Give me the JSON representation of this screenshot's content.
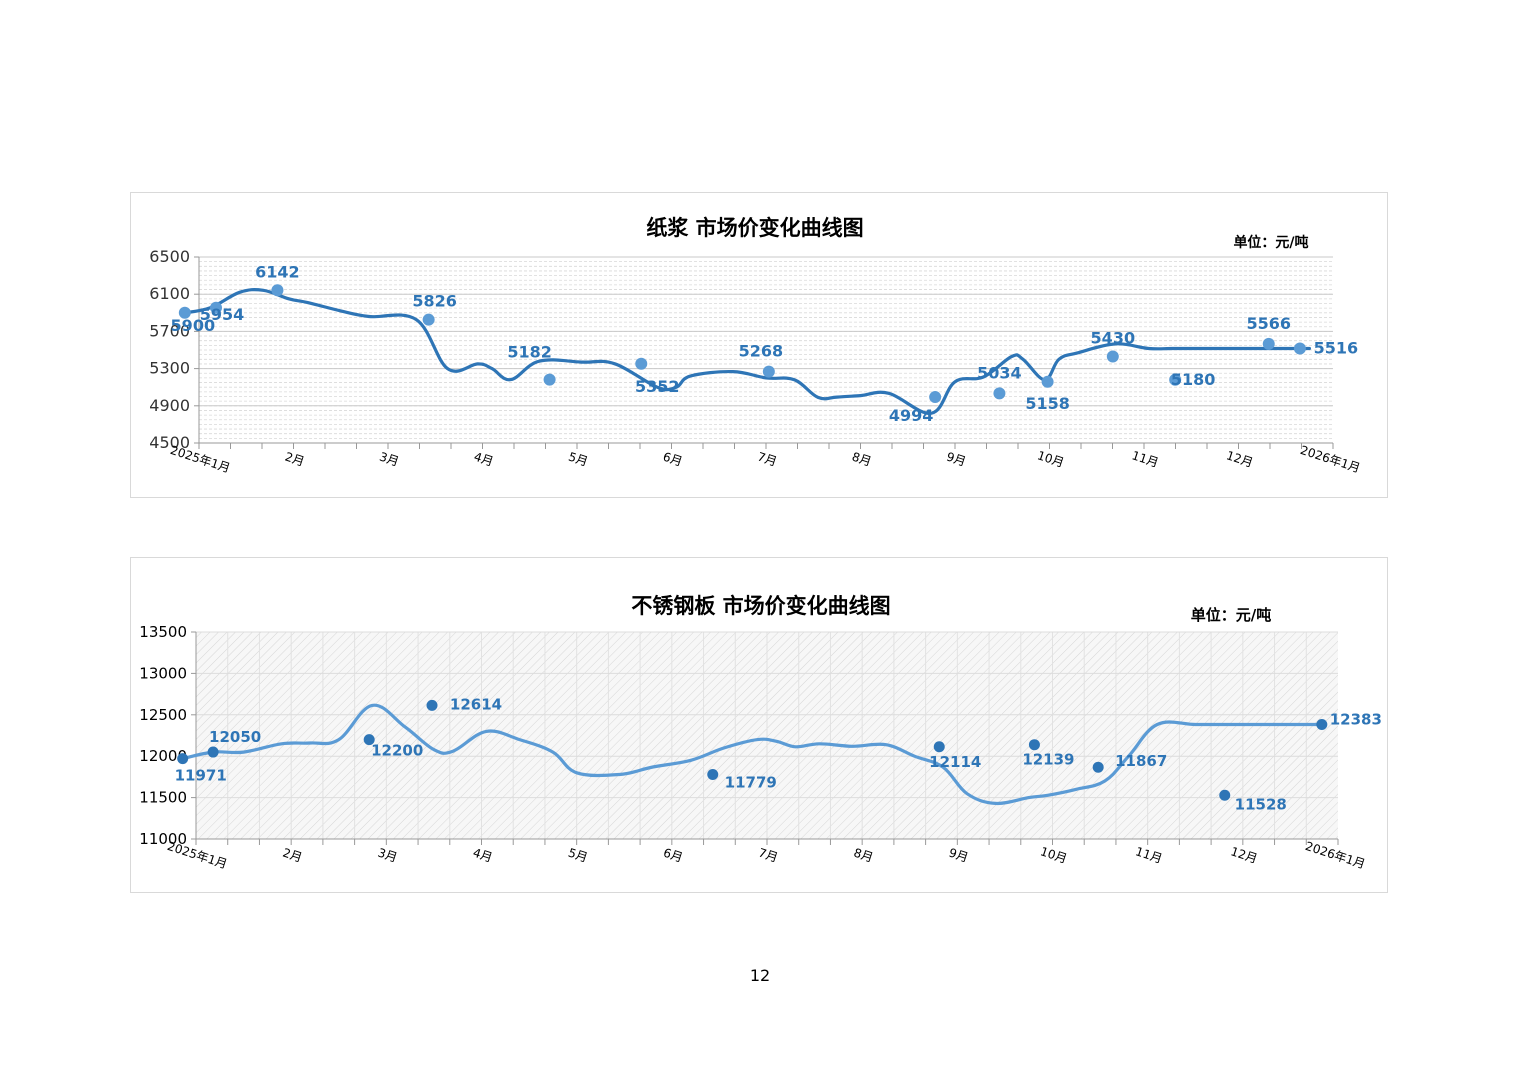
{
  "charts": [
    {
      "title": "纸浆 市场价变化曲线图",
      "unit": "单位：元/吨",
      "yticks": [
        "6500",
        "6100",
        "5700",
        "5300",
        "4900",
        "4500"
      ]
    },
    {
      "title": "不锈钢板 市场价变化曲线图",
      "unit": "单位：元/吨",
      "yticks": [
        "13500",
        "13000",
        "12500",
        "12000",
        "11500",
        "11000"
      ]
    }
  ],
  "page_number": "12",
  "chart_data": [
    {
      "type": "line",
      "title": "纸浆 市场价变化曲线图",
      "ylim": [
        4500,
        6500
      ],
      "y_tick_step": 400,
      "x_range": [
        0,
        12
      ],
      "x_tick_labels": [
        {
          "x": 0,
          "label": "2025年1月"
        },
        {
          "x": 1,
          "label": "2月"
        },
        {
          "x": 2,
          "label": "3月"
        },
        {
          "x": 3,
          "label": "4月"
        },
        {
          "x": 4,
          "label": "5月"
        },
        {
          "x": 5,
          "label": "6月"
        },
        {
          "x": 6,
          "label": "7月"
        },
        {
          "x": 7,
          "label": "8月"
        },
        {
          "x": 8,
          "label": "9月"
        },
        {
          "x": 9,
          "label": "10月"
        },
        {
          "x": 10,
          "label": "11月"
        },
        {
          "x": 11,
          "label": "12月"
        },
        {
          "x": 12,
          "label": "2026年1月"
        }
      ],
      "grid": "horizontal dashed",
      "line_color": "#2e75b6",
      "marker_color": "#5b9bd5",
      "label_color": "#2e75b6",
      "series": [
        {
          "x": [
            -0.15,
            0.12,
            0.43,
            0.68,
            0.95,
            1.15,
            1.5,
            1.8,
            2.3,
            2.63,
            2.95,
            3.1,
            3.3,
            3.6,
            4.05,
            4.4,
            4.85,
            5.05,
            5.2,
            5.65,
            6.0,
            6.3,
            6.55,
            6.75,
            7.0,
            7.3,
            7.75,
            8.0,
            8.3,
            8.6,
            8.72,
            8.95,
            9.1,
            9.3,
            9.7,
            10.05,
            10.3,
            10.55,
            11.1,
            11.4,
            11.75
          ],
          "y": [
            5900,
            5954,
            6120,
            6142,
            6050,
            6010,
            5920,
            5860,
            5826,
            5300,
            5350,
            5300,
            5182,
            5380,
            5370,
            5352,
            5100,
            5100,
            5220,
            5268,
            5200,
            5180,
            4990,
            4994,
            5010,
            5034,
            4820,
            5158,
            5210,
            5430,
            5400,
            5180,
            5400,
            5470,
            5566,
            5516,
            5516,
            5516,
            5516,
            5516,
            5516
          ],
          "labeled_points": [
            {
              "x": -0.15,
              "y": 5900,
              "label": "5900"
            },
            {
              "x": 0.18,
              "y": 5954,
              "label": "5954"
            },
            {
              "x": 0.83,
              "y": 6142,
              "label": "6142"
            },
            {
              "x": 2.43,
              "y": 5826,
              "label": "5826"
            },
            {
              "x": 3.71,
              "y": 5182,
              "label": "5182"
            },
            {
              "x": 4.68,
              "y": 5352,
              "label": "5352"
            },
            {
              "x": 6.03,
              "y": 5268,
              "label": "5268"
            },
            {
              "x": 7.79,
              "y": 4994,
              "label": "4994"
            },
            {
              "x": 8.47,
              "y": 5034,
              "label": "5034"
            },
            {
              "x": 8.98,
              "y": 5158,
              "label": "5158"
            },
            {
              "x": 9.67,
              "y": 5430,
              "label": "5430"
            },
            {
              "x": 10.33,
              "y": 5180,
              "label": "5180"
            },
            {
              "x": 11.32,
              "y": 5566,
              "label": "5566"
            },
            {
              "x": 11.65,
              "y": 5516,
              "label": "5516"
            }
          ]
        }
      ]
    },
    {
      "type": "line",
      "title": "不锈钢板 市场价变化曲线图",
      "ylim": [
        11000,
        13500
      ],
      "y_tick_step": 500,
      "x_range": [
        0,
        12
      ],
      "x_tick_labels": [
        {
          "x": 0,
          "label": "2025年1月"
        },
        {
          "x": 1,
          "label": "2月"
        },
        {
          "x": 2,
          "label": "3月"
        },
        {
          "x": 3,
          "label": "4月"
        },
        {
          "x": 4,
          "label": "5月"
        },
        {
          "x": 5,
          "label": "6月"
        },
        {
          "x": 6,
          "label": "7月"
        },
        {
          "x": 7,
          "label": "8月"
        },
        {
          "x": 8,
          "label": "9月"
        },
        {
          "x": 9,
          "label": "10月"
        },
        {
          "x": 10,
          "label": "11月"
        },
        {
          "x": 11,
          "label": "12月"
        },
        {
          "x": 12,
          "label": "2026年1月"
        }
      ],
      "grid": "horizontal and vertical, hatched plot area",
      "line_color": "#5b9bd5",
      "marker_color": "#2e75b6",
      "label_color": "#2e75b6",
      "series": [
        {
          "x": [
            -0.14,
            0.18,
            0.5,
            0.9,
            1.2,
            1.5,
            1.85,
            2.2,
            2.5,
            2.7,
            3.05,
            3.4,
            3.75,
            4.0,
            4.45,
            4.8,
            5.2,
            5.55,
            5.9,
            6.1,
            6.3,
            6.55,
            6.9,
            7.25,
            7.55,
            7.85,
            8.1,
            8.4,
            8.75,
            8.95,
            9.25,
            9.55,
            9.8,
            10.1,
            10.5,
            10.85,
            11.15,
            11.5,
            11.85
          ],
          "y": [
            11971,
            12050,
            12050,
            12150,
            12160,
            12200,
            12614,
            12350,
            12080,
            12060,
            12300,
            12200,
            12050,
            11800,
            11779,
            11870,
            11950,
            12100,
            12200,
            12180,
            12114,
            12150,
            12120,
            12139,
            12000,
            11867,
            11550,
            11430,
            11500,
            11528,
            11600,
            11700,
            12000,
            12383,
            12383,
            12383,
            12383,
            12383,
            12383
          ],
          "labeled_points": [
            {
              "x": -0.14,
              "y": 11971,
              "label": "11971"
            },
            {
              "x": 0.18,
              "y": 12050,
              "label": "12050"
            },
            {
              "x": 1.82,
              "y": 12200,
              "label": "12200"
            },
            {
              "x": 2.48,
              "y": 12614,
              "label": "12614"
            },
            {
              "x": 5.43,
              "y": 11779,
              "label": "11779"
            },
            {
              "x": 7.81,
              "y": 12114,
              "label": "12114"
            },
            {
              "x": 8.81,
              "y": 12139,
              "label": "12139"
            },
            {
              "x": 9.48,
              "y": 11867,
              "label": "11867"
            },
            {
              "x": 10.81,
              "y": 11528,
              "label": "11528"
            },
            {
              "x": 11.83,
              "y": 12383,
              "label": "12383"
            }
          ]
        }
      ]
    }
  ]
}
